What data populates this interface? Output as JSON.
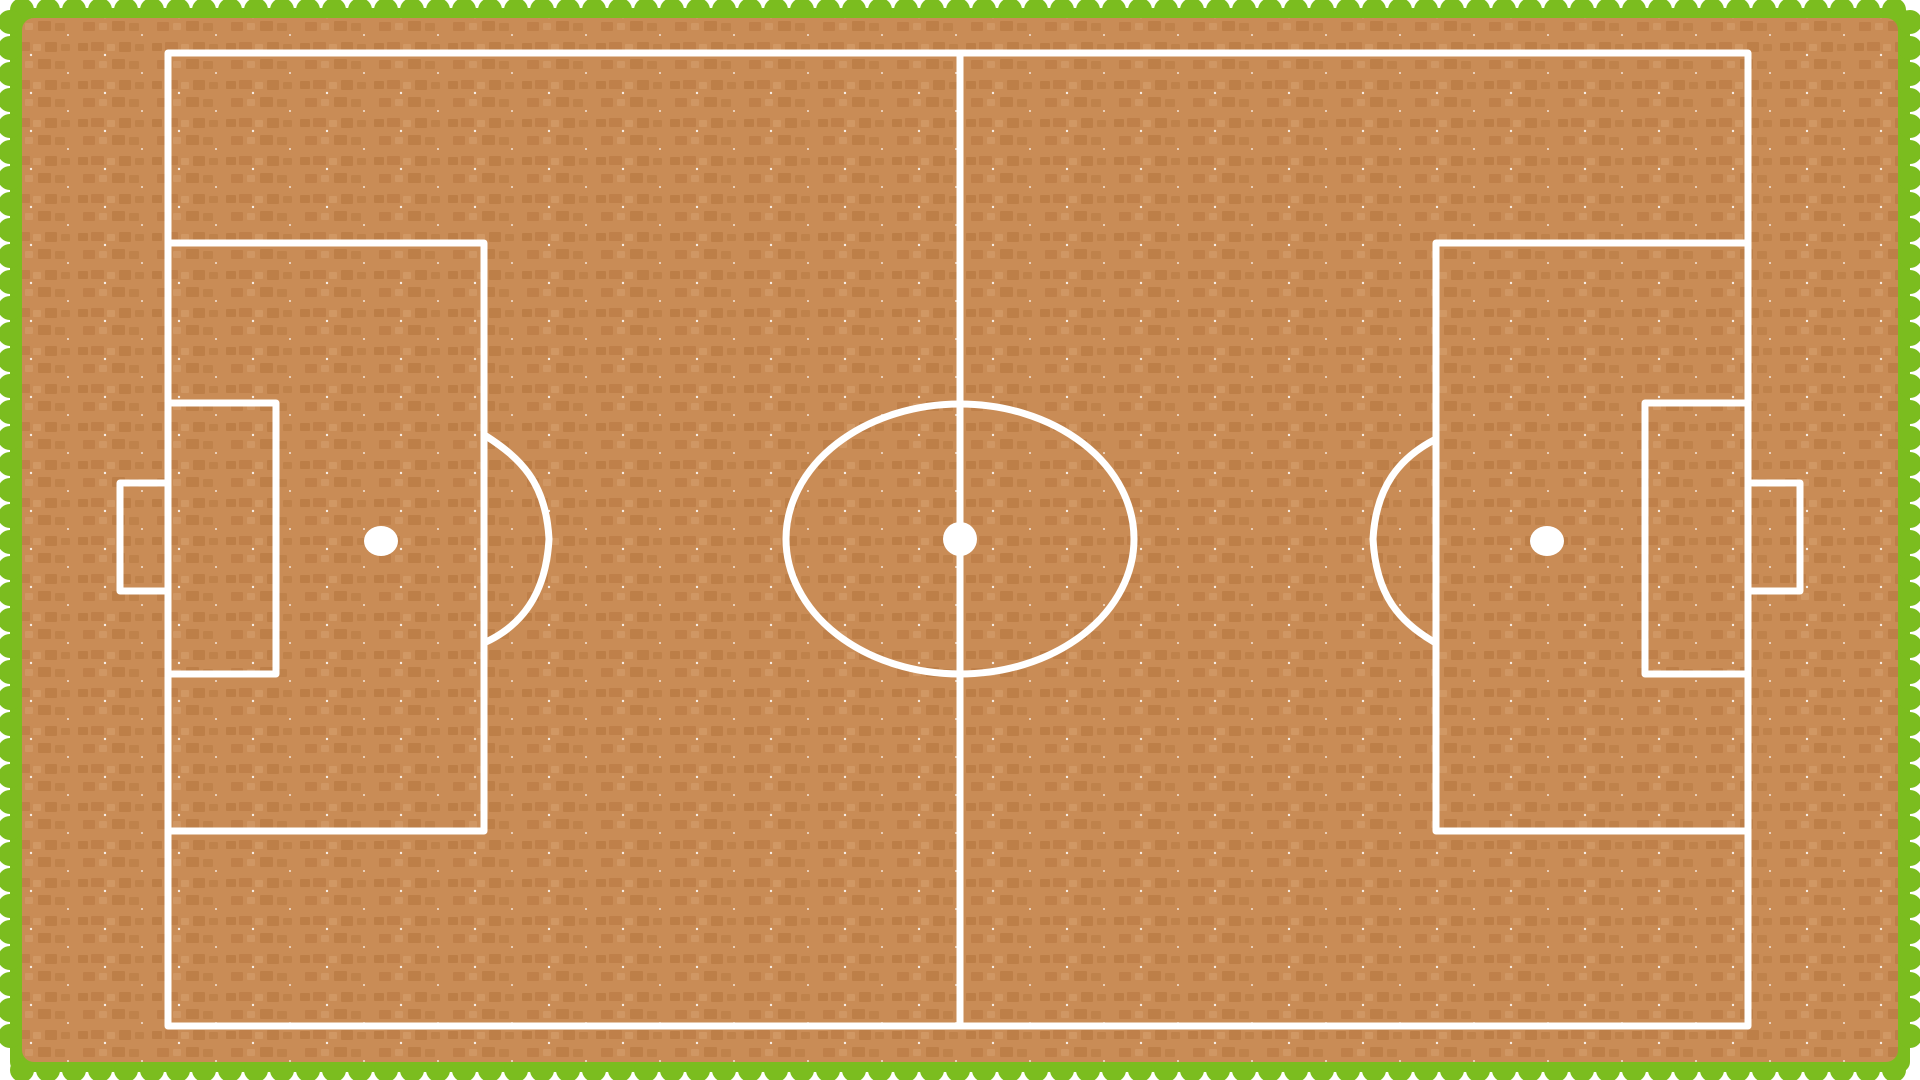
{
  "scene": {
    "type": "soccer-field-top-down",
    "style": "cartoon"
  },
  "colors": {
    "grass": "#7bbd1f",
    "grass_dark": "#5f9a12",
    "dirt": "#c98c56",
    "dirt_patch": "#b5773f",
    "dirt_patch_light": "#d39b68",
    "line": "#ffffff",
    "background": "#ffffff"
  },
  "elements": [
    "grass-border",
    "dirt-surface",
    "touchlines",
    "halfway-line",
    "center-circle",
    "center-spot",
    "left-penalty-area",
    "left-goal-area",
    "left-goal",
    "left-penalty-spot",
    "left-penalty-arc",
    "right-penalty-area",
    "right-goal-area",
    "right-goal",
    "right-penalty-spot",
    "right-penalty-arc"
  ]
}
